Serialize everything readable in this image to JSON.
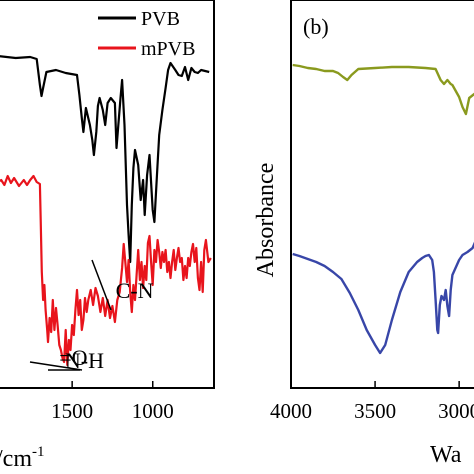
{
  "chart_data": [
    {
      "type": "line",
      "panel_label": "",
      "xlabel": "/cm",
      "xlabel_superscript": "-1",
      "x_ticks": [
        "1500",
        "1000"
      ],
      "x_tick_values": [
        1500,
        1000
      ],
      "xlim": [
        1960,
        620
      ],
      "legend": {
        "placement": "top-right"
      },
      "series": [
        {
          "name": "PVB",
          "color": "#000000",
          "points": [
            [
              1960,
              56
            ],
            [
              1850,
              58
            ],
            [
              1760,
              57
            ],
            [
              1720,
              59
            ],
            [
              1700,
              85
            ],
            [
              1690,
              96
            ],
            [
              1680,
              88
            ],
            [
              1660,
              72
            ],
            [
              1600,
              70
            ],
            [
              1540,
              73
            ],
            [
              1470,
              75
            ],
            [
              1455,
              95
            ],
            [
              1440,
              118
            ],
            [
              1430,
              132
            ],
            [
              1415,
              108
            ],
            [
              1390,
              125
            ],
            [
              1375,
              140
            ],
            [
              1365,
              155
            ],
            [
              1350,
              132
            ],
            [
              1340,
              106
            ],
            [
              1330,
              98
            ],
            [
              1310,
              110
            ],
            [
              1295,
              125
            ],
            [
              1280,
              103
            ],
            [
              1260,
              98
            ],
            [
              1235,
              103
            ],
            [
              1225,
              148
            ],
            [
              1215,
              128
            ],
            [
              1200,
              98
            ],
            [
              1190,
              80
            ],
            [
              1175,
              125
            ],
            [
              1160,
              205
            ],
            [
              1150,
              235
            ],
            [
              1140,
              262
            ],
            [
              1130,
              205
            ],
            [
              1120,
              168
            ],
            [
              1110,
              150
            ],
            [
              1090,
              165
            ],
            [
              1075,
              200
            ],
            [
              1060,
              180
            ],
            [
              1050,
              215
            ],
            [
              1035,
              175
            ],
            [
              1020,
              155
            ],
            [
              1000,
              210
            ],
            [
              990,
              222
            ],
            [
              975,
              178
            ],
            [
              960,
              135
            ],
            [
              940,
              110
            ],
            [
              920,
              88
            ],
            [
              905,
              70
            ],
            [
              890,
              63
            ],
            [
              860,
              70
            ],
            [
              840,
              75
            ],
            [
              820,
              76
            ],
            [
              800,
              67
            ],
            [
              780,
              80
            ],
            [
              760,
              68
            ],
            [
              740,
              72
            ],
            [
              720,
              73
            ],
            [
              700,
              70
            ],
            [
              650,
              72
            ]
          ]
        },
        {
          "name": "mPVB",
          "color": "#e8141c",
          "points": [
            [
              1960,
              182
            ],
            [
              1940,
              180
            ],
            [
              1920,
              185
            ],
            [
              1900,
              176
            ],
            [
              1880,
              183
            ],
            [
              1860,
              178
            ],
            [
              1830,
              186
            ],
            [
              1800,
              180
            ],
            [
              1780,
              185
            ],
            [
              1760,
              180
            ],
            [
              1740,
              176
            ],
            [
              1720,
              182
            ],
            [
              1700,
              184
            ],
            [
              1695,
              220
            ],
            [
              1688,
              272
            ],
            [
              1680,
              300
            ],
            [
              1672,
              285
            ],
            [
              1665,
              310
            ],
            [
              1655,
              330
            ],
            [
              1650,
              342
            ],
            [
              1640,
              318
            ],
            [
              1630,
              332
            ],
            [
              1620,
              300
            ],
            [
              1610,
              330
            ],
            [
              1600,
              308
            ],
            [
              1590,
              325
            ],
            [
              1580,
              345
            ],
            [
              1570,
              350
            ],
            [
              1560,
              358
            ],
            [
              1550,
              362
            ],
            [
              1540,
              330
            ],
            [
              1530,
              365
            ],
            [
              1520,
              340
            ],
            [
              1510,
              350
            ],
            [
              1500,
              325
            ],
            [
              1490,
              335
            ],
            [
              1480,
              310
            ],
            [
              1470,
              290
            ],
            [
              1460,
              315
            ],
            [
              1450,
              300
            ],
            [
              1440,
              330
            ],
            [
              1430,
              320
            ],
            [
              1420,
              298
            ],
            [
              1410,
              312
            ],
            [
              1400,
              300
            ],
            [
              1385,
              290
            ],
            [
              1370,
              305
            ],
            [
              1355,
              288
            ],
            [
              1340,
              296
            ],
            [
              1325,
              312
            ],
            [
              1310,
              298
            ],
            [
              1295,
              316
            ],
            [
              1280,
              300
            ],
            [
              1265,
              318
            ],
            [
              1250,
              306
            ],
            [
              1235,
              322
            ],
            [
              1220,
              300
            ],
            [
              1205,
              292
            ],
            [
              1190,
              268
            ],
            [
              1180,
              244
            ],
            [
              1170,
              262
            ],
            [
              1160,
              282
            ],
            [
              1150,
              260
            ],
            [
              1140,
              292
            ],
            [
              1130,
              312
            ],
            [
              1120,
              285
            ],
            [
              1110,
              300
            ],
            [
              1100,
              275
            ],
            [
              1090,
              250
            ],
            [
              1080,
              280
            ],
            [
              1070,
              262
            ],
            [
              1060,
              288
            ],
            [
              1050,
              266
            ],
            [
              1040,
              280
            ],
            [
              1030,
              243
            ],
            [
              1020,
              236
            ],
            [
              1010,
              262
            ],
            [
              1000,
              285
            ],
            [
              990,
              250
            ],
            [
              980,
              262
            ],
            [
              970,
              240
            ],
            [
              960,
              252
            ],
            [
              950,
              268
            ],
            [
              940,
              252
            ],
            [
              930,
              262
            ],
            [
              920,
              250
            ],
            [
              910,
              272
            ],
            [
              900,
              262
            ],
            [
              890,
              278
            ],
            [
              880,
              262
            ],
            [
              870,
              250
            ],
            [
              860,
              270
            ],
            [
              850,
              258
            ],
            [
              840,
              248
            ],
            [
              830,
              262
            ],
            [
              820,
              258
            ],
            [
              810,
              280
            ],
            [
              800,
              266
            ],
            [
              790,
              278
            ],
            [
              780,
              258
            ],
            [
              770,
              266
            ],
            [
              760,
              252
            ],
            [
              750,
              244
            ],
            [
              740,
              262
            ],
            [
              730,
              248
            ],
            [
              720,
              278
            ],
            [
              710,
              290
            ],
            [
              700,
              262
            ],
            [
              690,
              292
            ],
            [
              680,
              250
            ],
            [
              670,
              240
            ],
            [
              655,
              262
            ],
            [
              640,
              258
            ]
          ]
        }
      ],
      "annotations": [
        {
          "text": "C-N",
          "x": 1230,
          "y": 298
        },
        {
          "text": "=O",
          "x": 1580,
          "y": 365
        },
        {
          "text": "N-H",
          "x": 1545,
          "y": 368
        }
      ]
    },
    {
      "type": "line",
      "panel_label": "(b)",
      "ylabel": "Absorbance",
      "xlabel": "Wa",
      "x_ticks": [
        "4000",
        "3500",
        "3000"
      ],
      "x_tick_values": [
        4000,
        3500,
        3000
      ],
      "xlim": [
        4000,
        2870
      ],
      "series": [
        {
          "name": "",
          "color": "#8a9a1e",
          "points": [
            [
              3990,
              65
            ],
            [
              3950,
              66
            ],
            [
              3900,
              68
            ],
            [
              3850,
              69
            ],
            [
              3800,
              71
            ],
            [
              3750,
              71
            ],
            [
              3720,
              73
            ],
            [
              3690,
              77
            ],
            [
              3665,
              80
            ],
            [
              3640,
              75
            ],
            [
              3600,
              69
            ],
            [
              3500,
              68
            ],
            [
              3400,
              67
            ],
            [
              3300,
              67
            ],
            [
              3200,
              68
            ],
            [
              3140,
              69
            ],
            [
              3110,
              80
            ],
            [
              3090,
              84
            ],
            [
              3070,
              80
            ],
            [
              3050,
              84
            ],
            [
              3040,
              85
            ],
            [
              3000,
              97
            ],
            [
              2980,
              107
            ],
            [
              2960,
              114
            ],
            [
              2940,
              98
            ],
            [
              2910,
              94
            ],
            [
              2880,
              98
            ]
          ]
        },
        {
          "name": "",
          "color": "#3846a8",
          "points": [
            [
              3990,
              254
            ],
            [
              3950,
              256
            ],
            [
              3900,
              259
            ],
            [
              3850,
              262
            ],
            [
              3800,
              266
            ],
            [
              3750,
              272
            ],
            [
              3700,
              279
            ],
            [
              3650,
              293
            ],
            [
              3600,
              310
            ],
            [
              3550,
              330
            ],
            [
              3500,
              345
            ],
            [
              3470,
              353
            ],
            [
              3440,
              345
            ],
            [
              3400,
              320
            ],
            [
              3350,
              292
            ],
            [
              3300,
              272
            ],
            [
              3250,
              262
            ],
            [
              3220,
              258
            ],
            [
              3200,
              256
            ],
            [
              3180,
              255
            ],
            [
              3160,
              260
            ],
            [
              3150,
              272
            ],
            [
              3140,
              300
            ],
            [
              3130,
              330
            ],
            [
              3125,
              333
            ],
            [
              3115,
              305
            ],
            [
              3105,
              296
            ],
            [
              3090,
              300
            ],
            [
              3080,
              290
            ],
            [
              3070,
              306
            ],
            [
              3060,
              316
            ],
            [
              3050,
              290
            ],
            [
              3040,
              275
            ],
            [
              3000,
              260
            ],
            [
              2980,
              255
            ],
            [
              2950,
              252
            ],
            [
              2920,
              248
            ],
            [
              2900,
              240
            ],
            [
              2880,
              234
            ]
          ]
        }
      ]
    }
  ]
}
